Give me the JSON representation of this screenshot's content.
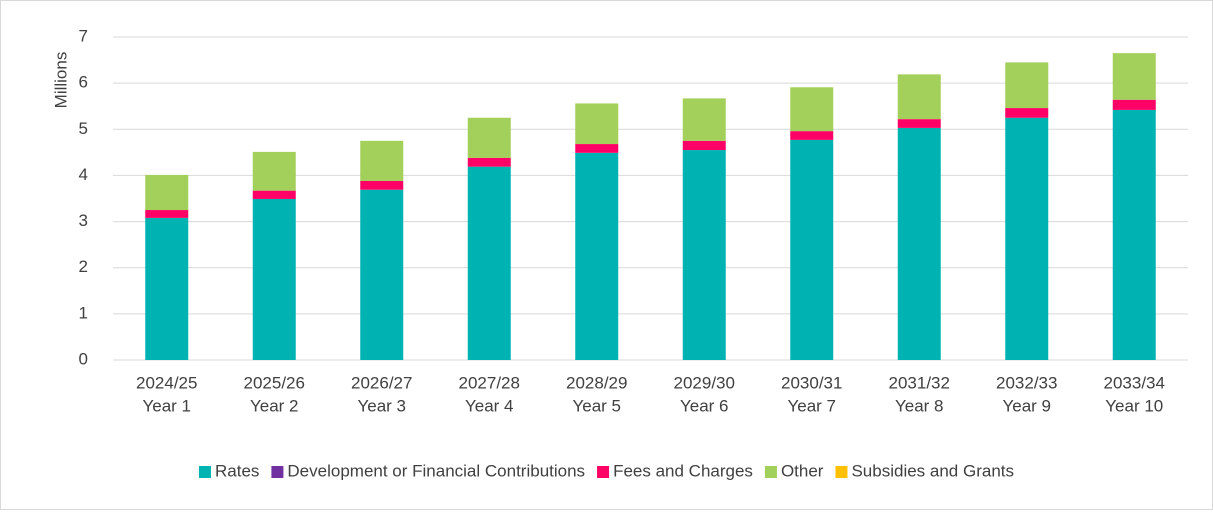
{
  "chart_data": {
    "type": "stacked_bar",
    "y_label": "Millions",
    "categories": [
      [
        "2024/25",
        "Year 1"
      ],
      [
        "2025/26",
        "Year 2"
      ],
      [
        "2026/27",
        "Year 3"
      ],
      [
        "2027/28",
        "Year 4"
      ],
      [
        "2028/29",
        "Year 5"
      ],
      [
        "2029/30",
        "Year 6"
      ],
      [
        "2030/31",
        "Year 7"
      ],
      [
        "2031/32",
        "Year 8"
      ],
      [
        "2032/33",
        "Year 9"
      ],
      [
        "2033/34",
        "Year 10"
      ]
    ],
    "series": [
      {
        "name": "Rates",
        "color": "#00b3b3",
        "values": [
          3.08,
          3.49,
          3.69,
          4.19,
          4.49,
          4.55,
          4.77,
          5.03,
          5.25,
          5.42
        ]
      },
      {
        "name": "Development or Financial Contributions",
        "color": "#7030a0",
        "values": [
          0,
          0,
          0,
          0,
          0,
          0,
          0,
          0,
          0,
          0
        ]
      },
      {
        "name": "Fees and Charges",
        "color": "#ff0066",
        "values": [
          0.17,
          0.18,
          0.19,
          0.19,
          0.19,
          0.2,
          0.19,
          0.19,
          0.21,
          0.22
        ]
      },
      {
        "name": "Other",
        "color": "#a3cf5b",
        "values": [
          0.76,
          0.84,
          0.87,
          0.87,
          0.88,
          0.92,
          0.95,
          0.97,
          0.99,
          1.01
        ]
      },
      {
        "name": "Subsidies and Grants",
        "color": "#ffc000",
        "values": [
          0,
          0,
          0,
          0,
          0,
          0,
          0,
          0,
          0,
          0
        ]
      }
    ],
    "ylim": [
      0,
      7
    ],
    "yticks": [
      0,
      1,
      2,
      3,
      4,
      5,
      6,
      7
    ],
    "grid": true,
    "legend": "bottom"
  }
}
